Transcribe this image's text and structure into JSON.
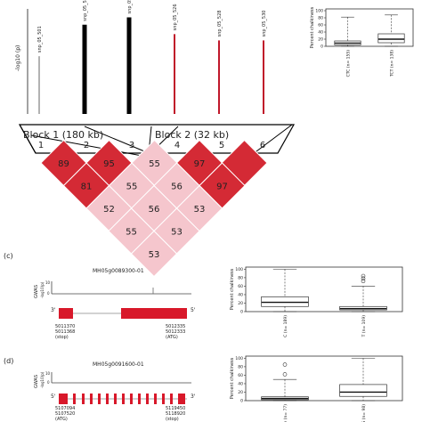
{
  "panel_a": {
    "ylabel": "-log10 (p)",
    "snps": [
      {
        "label": "snp_05_501",
        "height": 0.55,
        "color": "#666666",
        "width": 1
      },
      {
        "label": "snp_05_510",
        "height": 0.85,
        "color": "#000000",
        "width": 5
      },
      {
        "label": "snp_05_519",
        "height": 0.92,
        "color": "#000000",
        "width": 5
      },
      {
        "label": "snp_05_526",
        "height": 0.76,
        "color": "#c0182a",
        "width": 2
      },
      {
        "label": "snp_05_528",
        "height": 0.7,
        "color": "#c0182a",
        "width": 2
      },
      {
        "label": "snp_05_530",
        "height": 0.7,
        "color": "#c0182a",
        "width": 2
      }
    ],
    "block1_label": "Block 1 (180 kb)",
    "block2_label": "Block 2 (32 kb)",
    "marker_numbers": [
      "1",
      "2",
      "3",
      "4",
      "5",
      "6"
    ],
    "ld_cells": [
      {
        "i": 1,
        "j": 2,
        "value": "89",
        "color": "#d42a35"
      },
      {
        "i": 2,
        "j": 3,
        "value": "95",
        "color": "#d42a35"
      },
      {
        "i": 3,
        "j": 4,
        "value": "55",
        "color": "#f5c6cd"
      },
      {
        "i": 4,
        "j": 5,
        "value": "97",
        "color": "#d42a35"
      },
      {
        "i": 5,
        "j": 6,
        "value": "",
        "color": "#d42a35"
      },
      {
        "i": 1,
        "j": 3,
        "value": "81",
        "color": "#d42a35"
      },
      {
        "i": 2,
        "j": 4,
        "value": "55",
        "color": "#f5c6cd"
      },
      {
        "i": 3,
        "j": 5,
        "value": "56",
        "color": "#f5c6cd"
      },
      {
        "i": 4,
        "j": 6,
        "value": "97",
        "color": "#d42a35"
      },
      {
        "i": 1,
        "j": 4,
        "value": "52",
        "color": "#f5c6cd"
      },
      {
        "i": 2,
        "j": 5,
        "value": "56",
        "color": "#f5c6cd"
      },
      {
        "i": 3,
        "j": 6,
        "value": "53",
        "color": "#f5c6cd"
      },
      {
        "i": 1,
        "j": 5,
        "value": "55",
        "color": "#f5c6cd"
      },
      {
        "i": 2,
        "j": 6,
        "value": "53",
        "color": "#f5c6cd"
      },
      {
        "i": 1,
        "j": 6,
        "value": "53",
        "color": "#f5c6cd"
      }
    ]
  },
  "boxplot_b": {
    "ylabel": "Percent chalkiness",
    "yticks": [
      "0",
      "20",
      "40",
      "60",
      "80",
      "100"
    ],
    "groups": [
      {
        "label": "CTC (n= 155)",
        "q1": 4,
        "median": 9,
        "q3": 15,
        "low": 0,
        "high": 82,
        "outliers": []
      },
      {
        "label": "TCT (n= 138)",
        "q1": 10,
        "median": 20,
        "q3": 35,
        "low": 0,
        "high": 88,
        "outliers": []
      }
    ]
  },
  "panel_c": {
    "panel_label": "(c)",
    "gene_id": "MH05g0089300-01",
    "gwas_label": "GWAS",
    "gwas_sub": "-log10(p)",
    "axis_ticks": [
      "10",
      "0"
    ],
    "strand_left": "3'",
    "strand_right": "5'",
    "left_coords": "5011370\n5011368\n(stop)",
    "right_coords": "5012335\n5012333\n(ATG)",
    "boxplot": {
      "ylabel": "Percent chalkiness",
      "yticks": [
        "0",
        "20",
        "40",
        "60",
        "80",
        "100"
      ],
      "groups": [
        {
          "label": "C (n= 189)",
          "q1": 12,
          "median": 22,
          "q3": 35,
          "low": 0,
          "high": 100,
          "outliers": []
        },
        {
          "label": "T (n= 109)",
          "q1": 4,
          "median": 7,
          "q3": 12,
          "low": 0,
          "high": 60,
          "outliers": [
            72,
            78,
            84
          ]
        }
      ]
    }
  },
  "panel_d": {
    "panel_label": "(d)",
    "gene_id": "MH05g0091600-01",
    "gwas_label": "GWAS",
    "gwas_sub": "-log10(p)",
    "axis_ticks": [
      "10",
      "0"
    ],
    "strand_left": "5'",
    "strand_right": "3'",
    "left_coords": "5107094\n5107520\n(ATG)",
    "right_coords": "5119450\n5118920\n(stop)",
    "boxplot": {
      "ylabel": "Percent chalkiness",
      "yticks": [
        "0",
        "20",
        "40",
        "60",
        "80",
        "100"
      ],
      "groups": [
        {
          "label": "A (n= 77)",
          "q1": 2,
          "median": 5,
          "q3": 9,
          "low": 0,
          "high": 50,
          "outliers": [
            62,
            85
          ]
        },
        {
          "label": "G (n= 98)",
          "q1": 10,
          "median": 20,
          "q3": 38,
          "low": 0,
          "high": 100,
          "outliers": []
        }
      ]
    }
  }
}
